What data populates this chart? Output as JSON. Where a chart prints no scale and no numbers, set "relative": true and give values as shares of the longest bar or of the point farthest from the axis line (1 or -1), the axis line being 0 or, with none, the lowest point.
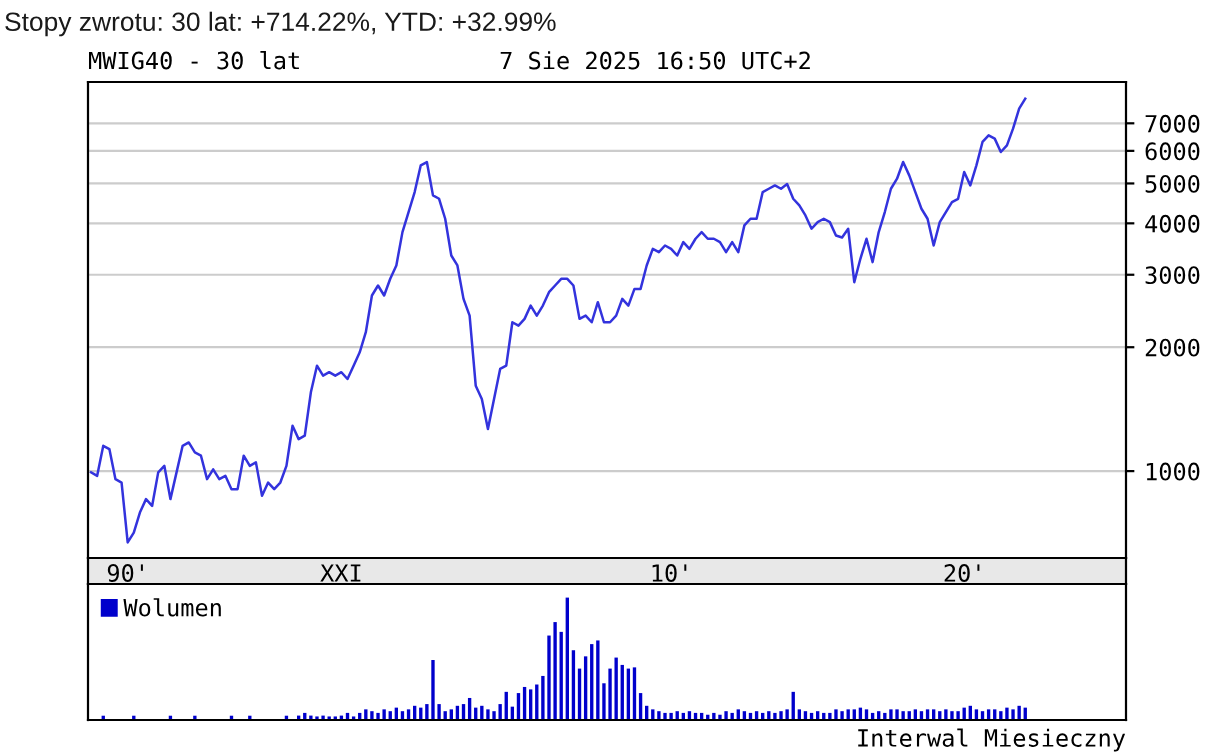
{
  "chart_data": [
    {
      "type": "line",
      "title": "MWIG40 - 30 lat",
      "subtitle": "7 Sie 2025 16:50 UTC+2",
      "annotations": [
        "Stopy zwrotu: 30 lat: +714.22%, YTD: +32.99%"
      ],
      "categories": [
        null,
        null,
        null,
        null,
        null,
        null,
        "90'",
        null,
        null,
        null,
        null,
        null,
        null,
        null,
        null,
        null,
        null,
        null,
        null,
        null,
        null,
        null,
        null,
        null,
        null,
        null,
        null,
        null,
        null,
        null,
        null,
        null,
        null,
        null,
        null,
        null,
        null,
        null,
        null,
        null,
        null,
        "XXI",
        null,
        null,
        null,
        null,
        null,
        null,
        null,
        null,
        null,
        null,
        null,
        null,
        null,
        null,
        null,
        null,
        null,
        null,
        null,
        null,
        null,
        null,
        null,
        null,
        null,
        null,
        null,
        null,
        null,
        null,
        null,
        null,
        null,
        null,
        null,
        null,
        null,
        null,
        null,
        null,
        null,
        null,
        null,
        null,
        null,
        null,
        null,
        null,
        null,
        null,
        null,
        null,
        null,
        "10'",
        null,
        null,
        null,
        null,
        null,
        null,
        null,
        null,
        null,
        null,
        null,
        null,
        null,
        null,
        null,
        null,
        null,
        null,
        null,
        null,
        null,
        null,
        null,
        null,
        null,
        null,
        null,
        null,
        null,
        null,
        null,
        null,
        null,
        null,
        null,
        null,
        null,
        null,
        null,
        null,
        null,
        null,
        null,
        null,
        null,
        null,
        null,
        "20'",
        null,
        null,
        null,
        null,
        null,
        null,
        null,
        null,
        null,
        null,
        null,
        null,
        null,
        null,
        null,
        null,
        null,
        null,
        null,
        null,
        null,
        null,
        null,
        null,
        null,
        null
      ],
      "series": [
        {
          "color": "#3333dd",
          "values": [
            993,
            974,
            1152,
            1131,
            956,
            938,
            671,
            709,
            793,
            855,
            823,
            993,
            1030,
            855,
            993,
            1152,
            1174,
            1110,
            1090,
            956,
            1010,
            956,
            974,
            904,
            904,
            1090,
            1030,
            1050,
            871,
            938,
            904,
            938,
            1030,
            1289,
            1196,
            1219,
            1554,
            1804,
            1706,
            1739,
            1706,
            1739,
            1674,
            1804,
            1944,
            2175,
            2671,
            2825,
            2671,
            2933,
            3160,
            3808,
            4261,
            4764,
            5533,
            5636,
            4677,
            4589,
            4104,
            3341,
            3160,
            2621,
            2387,
            1613,
            1497,
            1265,
            1497,
            1771,
            1804,
            2300,
            2257,
            2344,
            2525,
            2387,
            2525,
            2721,
            2825,
            2933,
            2933,
            2825,
            2344,
            2387,
            2300,
            2573,
            2300,
            2300,
            2387,
            2621,
            2525,
            2772,
            2772,
            3160,
            3468,
            3404,
            3533,
            3468,
            3341,
            3601,
            3468,
            3669,
            3808,
            3669,
            3669,
            3601,
            3404,
            3601,
            3404,
            3954,
            4104,
            4104,
            4764,
            4854,
            4946,
            4854,
            4983,
            4589,
            4421,
            4181,
            3881,
            4027,
            4104,
            4027,
            3738,
            3696,
            3881,
            2877,
            3280,
            3669,
            3220,
            3808,
            4261,
            4854,
            5134,
            5636,
            5231,
            4764,
            4340,
            4104,
            3533,
            4027,
            4261,
            4505,
            4589,
            5330,
            4946,
            5533,
            6307,
            6546,
            6425,
            5962,
            6188,
            6794,
            7599,
            8037,
            null,
            null,
            null,
            null,
            null,
            null,
            null,
            null,
            null,
            null,
            null,
            null,
            null,
            null,
            null,
            null
          ]
        }
      ],
      "log": "y",
      "ylim": [
        615,
        8820
      ],
      "yticks": [
        1000,
        2000,
        3000,
        4000,
        5000,
        6000,
        7000
      ],
      "grid": "y",
      "legend": false
    },
    {
      "type": "bar",
      "relative": true,
      "legend": "top left",
      "annotations": [
        "Interwal Miesieczny"
      ],
      "categories": [
        null,
        null,
        null,
        null,
        null,
        null,
        null,
        null,
        null,
        null,
        null,
        null,
        null,
        null,
        null,
        null,
        null,
        null,
        null,
        null,
        null,
        null,
        null,
        null,
        null,
        null,
        null,
        null,
        null,
        null,
        null,
        null,
        null,
        null,
        null,
        null,
        null,
        null,
        null,
        null,
        null,
        null,
        null,
        null,
        null,
        null,
        null,
        null,
        null,
        null,
        null,
        null,
        null,
        null,
        null,
        null,
        null,
        null,
        null,
        null,
        null,
        null,
        null,
        null,
        null,
        null,
        null,
        null,
        null,
        null,
        null,
        null,
        null,
        null,
        null,
        null,
        null,
        null,
        null,
        null,
        null,
        null,
        null,
        null,
        null,
        null,
        null,
        null,
        null,
        null,
        null,
        null,
        null,
        null,
        null,
        null,
        null,
        null,
        null,
        null,
        null,
        null,
        null,
        null,
        null,
        null,
        null,
        null,
        null,
        null,
        null,
        null,
        null,
        null,
        null,
        null,
        null,
        null,
        null,
        null,
        null,
        null,
        null,
        null,
        null,
        null,
        null,
        null,
        null,
        null,
        null,
        null,
        null,
        null,
        null,
        null,
        null,
        null,
        null,
        null,
        null,
        null,
        null,
        null,
        null,
        null,
        null,
        null,
        null,
        null,
        null,
        null,
        null,
        null,
        null,
        null,
        null,
        null,
        null,
        null,
        null,
        null,
        null,
        null,
        null,
        null,
        null,
        null,
        null,
        null
      ],
      "series": [
        {
          "name": "Wolumen",
          "color": "#0000cc",
          "values": [
            null,
            null,
            0.035,
            null,
            null,
            null,
            null,
            0.035,
            null,
            null,
            null,
            null,
            null,
            0.035,
            null,
            null,
            null,
            0.035,
            null,
            null,
            null,
            null,
            null,
            0.035,
            null,
            null,
            0.035,
            null,
            null,
            null,
            null,
            null,
            0.035,
            null,
            0.036,
            0.058,
            0.036,
            0.029,
            0.036,
            0.029,
            0.029,
            0.036,
            0.058,
            0.029,
            0.058,
            0.087,
            0.072,
            0.058,
            0.087,
            0.072,
            0.101,
            0.072,
            0.087,
            0.116,
            0.101,
            0.13,
            0.49,
            0.13,
            0.072,
            0.087,
            0.116,
            0.13,
            0.18,
            0.101,
            0.116,
            0.087,
            0.072,
            0.13,
            0.23,
            0.109,
            0.22,
            0.27,
            0.25,
            0.29,
            0.36,
            0.69,
            0.8,
            0.72,
            1,
            0.57,
            0.42,
            0.52,
            0.62,
            0.65,
            0.3,
            0.42,
            0.51,
            0.45,
            0.42,
            0.43,
            0.22,
            0.116,
            0.087,
            0.072,
            0.058,
            0.058,
            0.072,
            0.058,
            0.072,
            0.058,
            0.058,
            0.043,
            0.058,
            0.043,
            0.072,
            0.058,
            0.087,
            0.072,
            0.058,
            0.072,
            0.058,
            0.072,
            0.058,
            0.072,
            0.087,
            0.23,
            0.087,
            0.072,
            0.058,
            0.072,
            0.058,
            0.058,
            0.087,
            0.072,
            0.087,
            0.087,
            0.101,
            0.087,
            0.058,
            0.072,
            0.058,
            0.087,
            0.087,
            0.072,
            0.072,
            0.087,
            0.072,
            0.087,
            0.087,
            0.072,
            0.087,
            0.072,
            0.072,
            0.101,
            0.116,
            0.087,
            0.072,
            0.087,
            0.087,
            0.072,
            0.101,
            0.087,
            0.116,
            0.101,
            null,
            null,
            null,
            null,
            null,
            null,
            null,
            null,
            null,
            null,
            null,
            null,
            null,
            null,
            null,
            null
          ]
        }
      ]
    }
  ]
}
